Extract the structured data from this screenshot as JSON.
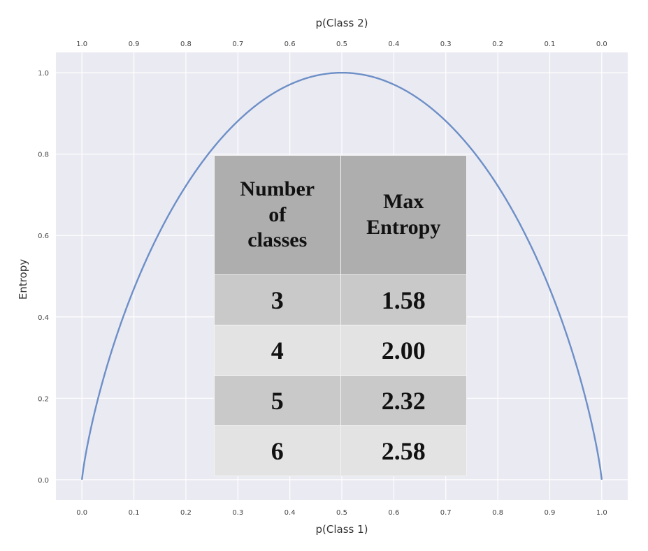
{
  "chart_data": {
    "type": "line",
    "title": "",
    "xlabel": "p(Class 1)",
    "x2label": "p(Class 2)",
    "ylabel": "Entropy",
    "xlim": [
      -0.05,
      1.05
    ],
    "ylim": [
      -0.05,
      1.05
    ],
    "x_ticks": [
      "0.0",
      "0.1",
      "0.2",
      "0.3",
      "0.4",
      "0.5",
      "0.6",
      "0.7",
      "0.8",
      "0.9",
      "1.0"
    ],
    "x2_ticks": [
      "1.0",
      "0.9",
      "0.8",
      "0.7",
      "0.6",
      "0.5",
      "0.4",
      "0.3",
      "0.2",
      "0.1",
      "0.0"
    ],
    "y_ticks": [
      "0.0",
      "0.2",
      "0.4",
      "0.6",
      "0.8",
      "1.0"
    ],
    "grid": true,
    "background": "#eaeaf2",
    "line_color": "#6d8fc7",
    "series": [
      {
        "x": [
          0.0,
          0.01,
          0.05,
          0.1,
          0.2,
          0.3,
          0.4,
          0.5,
          0.6,
          0.7,
          0.8,
          0.9,
          0.95,
          0.99,
          1.0
        ],
        "y": [
          0.0,
          0.08,
          0.29,
          0.47,
          0.72,
          0.88,
          0.97,
          1.0,
          0.97,
          0.88,
          0.72,
          0.47,
          0.29,
          0.08,
          0.0
        ]
      }
    ]
  },
  "table": {
    "header": [
      "Number\nof\nclasses",
      "Max\nEntropy"
    ],
    "rows": [
      [
        "3",
        "1.58"
      ],
      [
        "4",
        "2.00"
      ],
      [
        "5",
        "2.32"
      ],
      [
        "6",
        "2.58"
      ]
    ]
  }
}
